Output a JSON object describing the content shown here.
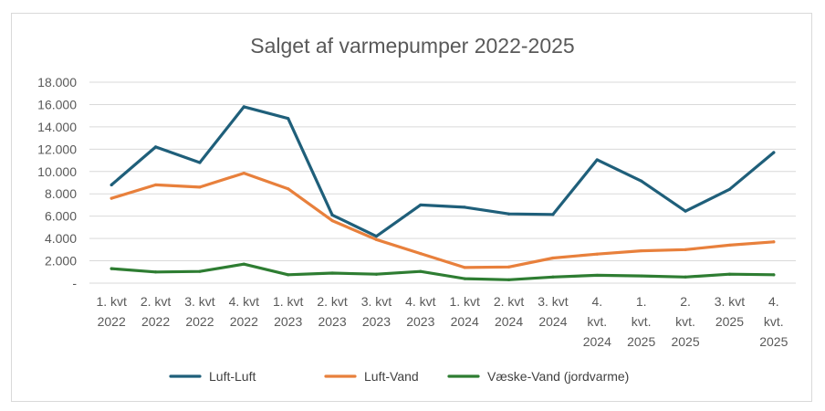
{
  "chart_data": {
    "type": "line",
    "title": "Salget af varmepumper 2022-2025",
    "xlabel": "",
    "ylabel": "",
    "ylim": [
      0,
      18000
    ],
    "yticks": [
      0,
      2000,
      4000,
      6000,
      8000,
      10000,
      12000,
      14000,
      16000,
      18000
    ],
    "ytick_labels": [
      "-",
      "2.000",
      "4.000",
      "6.000",
      "8.000",
      "10.000",
      "12.000",
      "14.000",
      "16.000",
      "18.000"
    ],
    "categories": [
      "1. kvt 2022",
      "2. kvt 2022",
      "3. kvt 2022",
      "4. kvt 2022",
      "1. kvt 2023",
      "2. kvt 2023",
      "3. kvt 2023",
      "4. kvt 2023",
      "1. kvt 2024",
      "2. kvt 2024",
      "3. kvt 2024",
      "4. kvt. 2024",
      "1. kvt. 2025",
      "2. kvt. 2025",
      "3. kvt 2025",
      "4. kvt. 2025"
    ],
    "category_lines": [
      [
        "1. kvt",
        "2022"
      ],
      [
        "2. kvt",
        "2022"
      ],
      [
        "3. kvt",
        "2022"
      ],
      [
        "4. kvt",
        "2022"
      ],
      [
        "1. kvt",
        "2023"
      ],
      [
        "2. kvt",
        "2023"
      ],
      [
        "3. kvt",
        "2023"
      ],
      [
        "4. kvt",
        "2023"
      ],
      [
        "1. kvt",
        "2024"
      ],
      [
        "2. kvt",
        "2024"
      ],
      [
        "3. kvt",
        "2024"
      ],
      [
        "4.",
        "kvt.",
        "2024"
      ],
      [
        "1.",
        "kvt.",
        "2025"
      ],
      [
        "2.",
        "kvt.",
        "2025"
      ],
      [
        "3. kvt",
        "2025"
      ],
      [
        "4.",
        "kvt.",
        "2025"
      ]
    ],
    "series": [
      {
        "name": "Luft-Luft",
        "color": "#1f5f7a",
        "values": [
          8800,
          12200,
          10800,
          15800,
          14750,
          6100,
          4200,
          7000,
          6800,
          6200,
          6150,
          11050,
          9150,
          6450,
          8400,
          11700
        ]
      },
      {
        "name": "Luft-Vand",
        "color": "#e8803c",
        "values": [
          7600,
          8800,
          8600,
          9850,
          8450,
          5600,
          3900,
          2650,
          1400,
          1450,
          2250,
          2600,
          2900,
          3000,
          3400,
          3700
        ]
      },
      {
        "name": "Væske-Vand (jordvarme)",
        "color": "#2e7d32",
        "values": [
          1300,
          1000,
          1050,
          1700,
          750,
          900,
          800,
          1050,
          400,
          300,
          550,
          700,
          650,
          550,
          800,
          750
        ]
      }
    ],
    "grid": true,
    "legend": "bottom"
  }
}
